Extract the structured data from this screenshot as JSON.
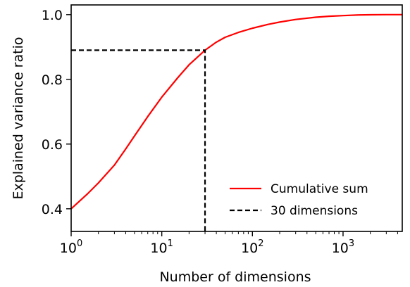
{
  "chart_data": {
    "type": "line",
    "title": "",
    "xlabel": "Number of dimensions",
    "ylabel": "Explained variance ratio",
    "xscale": "log",
    "xlim": [
      1,
      4500
    ],
    "ylim": [
      0.33,
      1.03
    ],
    "grid": false,
    "legend_position": "lower-right",
    "x_tick_labels": [
      {
        "value": 1,
        "base": "10",
        "exp": "0"
      },
      {
        "value": 10,
        "base": "10",
        "exp": "1"
      },
      {
        "value": 100,
        "base": "10",
        "exp": "2"
      },
      {
        "value": 1000,
        "base": "10",
        "exp": "3"
      }
    ],
    "y_ticks": [
      0.4,
      0.6,
      0.8,
      1.0
    ],
    "y_tick_labels": [
      "0.4",
      "0.6",
      "0.8",
      "1.0"
    ],
    "series": [
      {
        "name": "Cumulative sum",
        "color": "#ff0000",
        "style": "solid",
        "x": [
          1,
          1.5,
          2,
          3,
          4,
          5,
          7,
          10,
          15,
          20,
          30,
          40,
          50,
          70,
          100,
          150,
          200,
          300,
          500,
          700,
          1000,
          1500,
          2000,
          3000,
          4500
        ],
        "y": [
          0.4,
          0.445,
          0.48,
          0.535,
          0.585,
          0.625,
          0.685,
          0.745,
          0.805,
          0.845,
          0.89,
          0.915,
          0.93,
          0.945,
          0.958,
          0.97,
          0.977,
          0.985,
          0.992,
          0.995,
          0.997,
          0.999,
          0.9995,
          1.0,
          1.0
        ]
      },
      {
        "name": "30 dimensions",
        "color": "#000000",
        "style": "dashed",
        "x": [
          1,
          30,
          30
        ],
        "y": [
          0.89,
          0.89,
          0.33
        ]
      }
    ]
  }
}
